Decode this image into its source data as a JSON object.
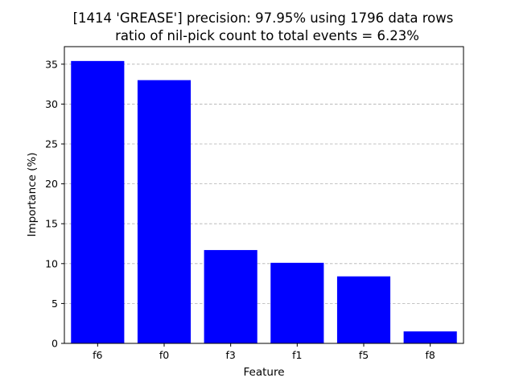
{
  "chart_data": {
    "type": "bar",
    "title_line1": "[1414 'GREASE'] precision: 97.95% using 1796 data rows",
    "title_line2": "ratio of nil-pick count to total events = 6.23%",
    "xlabel": "Feature",
    "ylabel": "Importance (%)",
    "categories": [
      "f6",
      "f0",
      "f3",
      "f1",
      "f5",
      "f8"
    ],
    "values": [
      35.4,
      33.0,
      11.7,
      10.1,
      8.4,
      1.5
    ],
    "ylim": [
      0,
      37.2
    ],
    "yticks": [
      0,
      5,
      10,
      15,
      20,
      25,
      30,
      35
    ],
    "grid": "horizontal dashed",
    "legend": "none",
    "colors": {
      "bar": "#0000ff",
      "grid": "#b0b0b0",
      "axis": "#000000"
    }
  }
}
